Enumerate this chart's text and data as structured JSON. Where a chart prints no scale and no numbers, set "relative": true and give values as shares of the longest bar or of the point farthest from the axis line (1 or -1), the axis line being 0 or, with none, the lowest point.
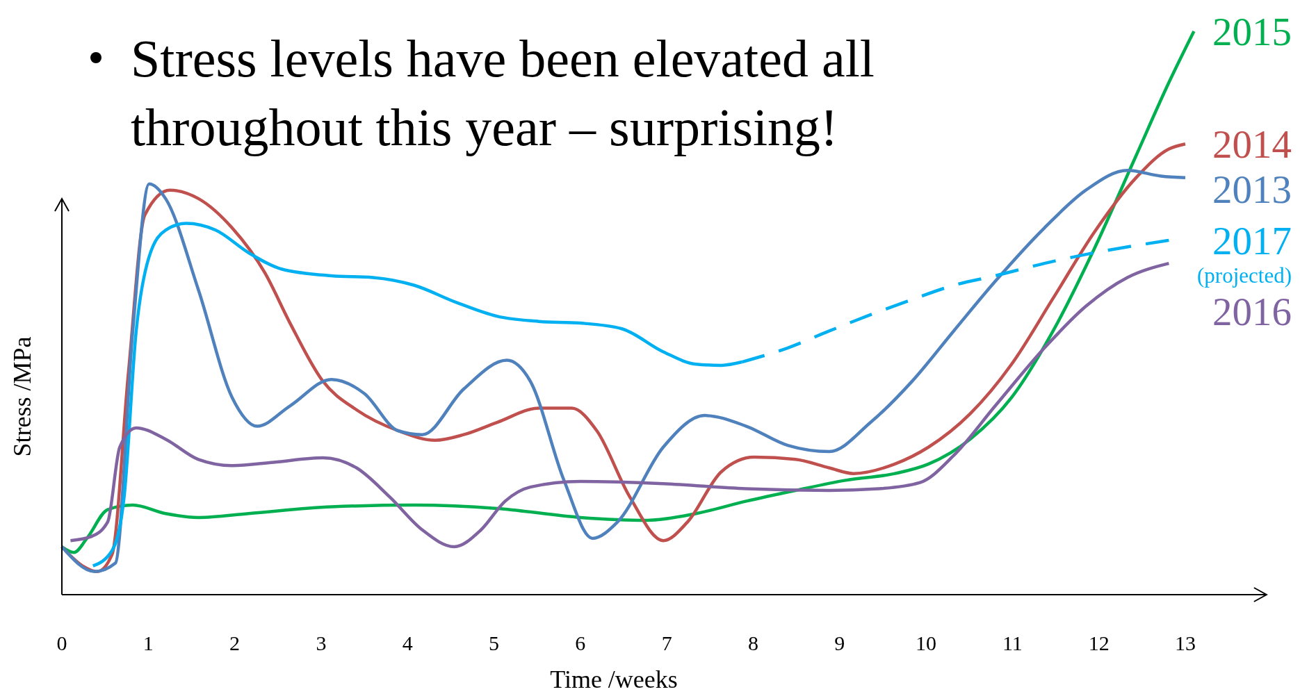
{
  "chart_data": {
    "type": "line",
    "title": "Stress levels have been elevated all throughout this year – surprising!",
    "xlabel": "Time /weeks",
    "ylabel": "Stress /MPa",
    "relative": true,
    "annotations": [
      {
        "text": "(projected)",
        "x": 12.81,
        "y": 0.629
      }
    ],
    "xlim": [
      0,
      13.94
    ],
    "xticks": [
      0,
      1,
      2,
      3,
      4,
      5,
      6,
      7,
      8,
      9,
      10,
      11,
      12,
      13
    ],
    "series": [
      {
        "name": "2015",
        "color": "#00b050",
        "x": [
          0,
          0.14,
          0.29,
          0.53,
          0.82,
          1.2,
          1.58,
          2.16,
          3.12,
          4.08,
          5.04,
          6.0,
          6.77,
          7.34,
          7.92,
          8.49,
          9.07,
          9.64,
          10.03,
          10.51,
          10.99,
          11.47,
          11.95,
          12.43,
          12.81,
          13.1
        ],
        "values": [
          0.085,
          0.075,
          0.1,
          0.151,
          0.159,
          0.144,
          0.137,
          0.144,
          0.156,
          0.159,
          0.153,
          0.137,
          0.132,
          0.144,
          0.166,
          0.185,
          0.203,
          0.215,
          0.232,
          0.276,
          0.35,
          0.468,
          0.615,
          0.779,
          0.909,
          1.0
        ]
      },
      {
        "name": "2014",
        "color": "#c0504d",
        "x": [
          0,
          0.24,
          0.41,
          0.58,
          0.77,
          0.96,
          1.25,
          1.58,
          1.97,
          2.35,
          2.64,
          3.02,
          3.41,
          3.89,
          4.32,
          4.65,
          5.04,
          5.52,
          5.9,
          6.19,
          6.57,
          6.96,
          7.24,
          7.63,
          8.01,
          8.49,
          8.88,
          9.16,
          9.64,
          10.03,
          10.51,
          10.99,
          11.47,
          11.95,
          12.43,
          12.81,
          13.0
        ],
        "values": [
          0.085,
          0.051,
          0.041,
          0.071,
          0.394,
          0.674,
          0.718,
          0.703,
          0.651,
          0.571,
          0.482,
          0.379,
          0.328,
          0.291,
          0.274,
          0.284,
          0.306,
          0.331,
          0.331,
          0.291,
          0.174,
          0.096,
          0.129,
          0.218,
          0.244,
          0.24,
          0.225,
          0.215,
          0.232,
          0.262,
          0.321,
          0.409,
          0.526,
          0.644,
          0.74,
          0.791,
          0.8
        ]
      },
      {
        "name": "2013",
        "color": "#4f81bd",
        "x": [
          0,
          0.38,
          0.62,
          0.82,
          1.01,
          1.2,
          1.58,
          1.97,
          2.26,
          2.64,
          3.12,
          3.5,
          3.89,
          4.17,
          4.65,
          5.15,
          5.42,
          5.81,
          6.14,
          6.43,
          6.96,
          7.44,
          7.92,
          8.4,
          8.88,
          9.36,
          9.84,
          10.32,
          10.8,
          11.37,
          11.85,
          12.33,
          12.72,
          13.0
        ],
        "values": [
          0.085,
          0.041,
          0.056,
          0.468,
          0.729,
          0.703,
          0.541,
          0.35,
          0.299,
          0.335,
          0.382,
          0.357,
          0.291,
          0.284,
          0.365,
          0.416,
          0.379,
          0.203,
          0.1,
          0.129,
          0.262,
          0.318,
          0.299,
          0.265,
          0.254,
          0.306,
          0.379,
          0.468,
          0.556,
          0.651,
          0.718,
          0.753,
          0.743,
          0.74
        ]
      },
      {
        "color": "#00b0f0",
        "x": [
          0.36,
          0.58,
          0.72,
          0.86,
          1.01,
          1.2,
          1.44,
          1.78,
          2.16,
          2.54,
          3.12,
          3.6,
          4.08,
          4.56,
          5.04,
          5.52,
          6.0,
          6.48,
          6.96,
          7.34,
          7.63,
          7.87
        ],
        "values": [
          0.051,
          0.078,
          0.173,
          0.468,
          0.6,
          0.647,
          0.659,
          0.647,
          0.607,
          0.578,
          0.566,
          0.563,
          0.549,
          0.519,
          0.494,
          0.485,
          0.482,
          0.472,
          0.431,
          0.409,
          0.407,
          0.413
        ]
      },
      {
        "name": "2017",
        "color": "#00b0f0",
        "line_style": "dashed",
        "x": [
          7.87,
          8.4,
          8.88,
          9.36,
          9.84,
          10.32,
          10.8,
          11.37,
          11.95,
          12.52,
          12.81
        ],
        "values": [
          0.413,
          0.438,
          0.468,
          0.497,
          0.524,
          0.549,
          0.566,
          0.588,
          0.607,
          0.622,
          0.629
        ]
      },
      {
        "name": "2016",
        "color": "#8064a2",
        "x": [
          0.1,
          0.34,
          0.53,
          0.67,
          0.86,
          1.2,
          1.58,
          1.97,
          2.45,
          3.02,
          3.41,
          3.79,
          4.17,
          4.54,
          4.85,
          5.13,
          5.42,
          6.0,
          6.96,
          7.92,
          8.88,
          9.45,
          9.93,
          10.32,
          10.8,
          11.37,
          11.85,
          12.33,
          12.81
        ],
        "values": [
          0.096,
          0.103,
          0.129,
          0.262,
          0.296,
          0.276,
          0.24,
          0.229,
          0.235,
          0.243,
          0.225,
          0.174,
          0.115,
          0.085,
          0.115,
          0.166,
          0.191,
          0.201,
          0.197,
          0.188,
          0.185,
          0.188,
          0.199,
          0.247,
          0.335,
          0.438,
          0.512,
          0.563,
          0.588
        ]
      }
    ]
  }
}
